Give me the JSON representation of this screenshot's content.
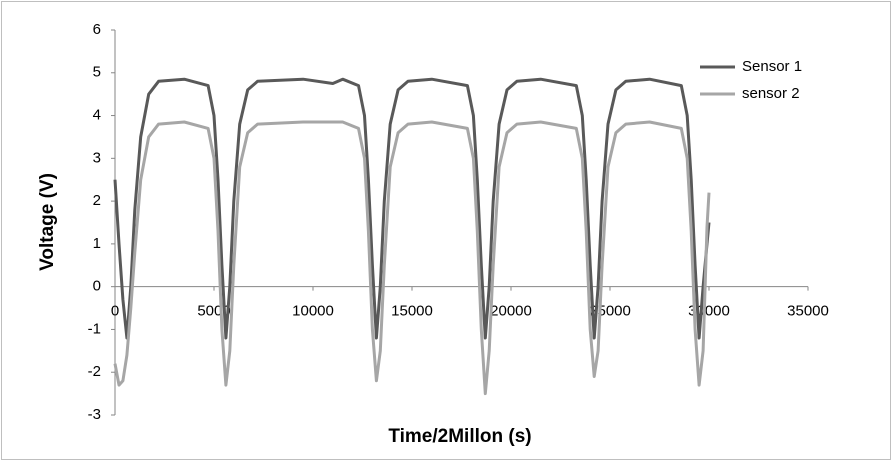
{
  "chart_data": {
    "type": "line",
    "x_label": "Time/2Millon (s)",
    "y_label": "Voltage  (V)",
    "x": [
      0,
      200,
      400,
      600,
      800,
      1000,
      1300,
      1700,
      2200,
      3500,
      4700,
      5000,
      5200,
      5400,
      5600,
      5800,
      6000,
      6300,
      6700,
      7200,
      9500,
      11000,
      11500,
      12300,
      12600,
      12800,
      13000,
      13200,
      13400,
      13600,
      13900,
      14300,
      14800,
      16000,
      17800,
      18100,
      18300,
      18500,
      18700,
      18900,
      19100,
      19400,
      19800,
      20300,
      21500,
      23300,
      23600,
      23800,
      24000,
      24200,
      24400,
      24600,
      24900,
      25300,
      25800,
      27000,
      28600,
      28900,
      29100,
      29300,
      29500,
      29700,
      29900,
      30000
    ],
    "series": [
      {
        "name": "Sensor 1",
        "color": "#595959",
        "values": [
          2.5,
          1.0,
          -0.3,
          -1.2,
          0,
          1.8,
          3.5,
          4.5,
          4.8,
          4.85,
          4.7,
          4.0,
          2.5,
          0.5,
          -1.2,
          0,
          2.0,
          3.8,
          4.6,
          4.8,
          4.85,
          4.75,
          4.85,
          4.7,
          4.0,
          2.5,
          0.5,
          -1.2,
          0,
          2.0,
          3.8,
          4.6,
          4.8,
          4.85,
          4.7,
          4.0,
          2.5,
          0.5,
          -1.2,
          0,
          2.0,
          3.8,
          4.6,
          4.8,
          4.85,
          4.7,
          4.0,
          2.5,
          0.5,
          -1.2,
          0,
          2.0,
          3.8,
          4.6,
          4.8,
          4.85,
          4.7,
          4.0,
          2.5,
          0.5,
          -1.2,
          0,
          1.0,
          1.5
        ]
      },
      {
        "name": "sensor 2",
        "color": "#a6a6a6",
        "values": [
          -1.8,
          -2.3,
          -2.2,
          -1.6,
          -0.5,
          0.8,
          2.5,
          3.5,
          3.8,
          3.85,
          3.7,
          3.0,
          1.3,
          -1.0,
          -2.3,
          -1.5,
          0.5,
          2.8,
          3.6,
          3.8,
          3.85,
          3.85,
          3.85,
          3.7,
          3.0,
          1.3,
          -1.0,
          -2.2,
          -1.5,
          0.5,
          2.8,
          3.6,
          3.8,
          3.85,
          3.7,
          3.0,
          1.3,
          -1.0,
          -2.5,
          -1.5,
          0.5,
          2.8,
          3.6,
          3.8,
          3.85,
          3.7,
          3.0,
          1.3,
          -1.0,
          -2.1,
          -1.5,
          0.5,
          2.8,
          3.6,
          3.8,
          3.85,
          3.7,
          3.0,
          1.3,
          -1.0,
          -2.3,
          -1.5,
          1.4,
          2.2
        ]
      }
    ],
    "xlim": [
      0,
      35000
    ],
    "xticks": [
      0,
      5000,
      10000,
      15000,
      20000,
      25000,
      30000,
      35000
    ],
    "ylim": [
      -3,
      6
    ],
    "yticks": [
      -3,
      -2,
      -1,
      0,
      1,
      2,
      3,
      4,
      5,
      6
    ],
    "legend": "top-right"
  }
}
